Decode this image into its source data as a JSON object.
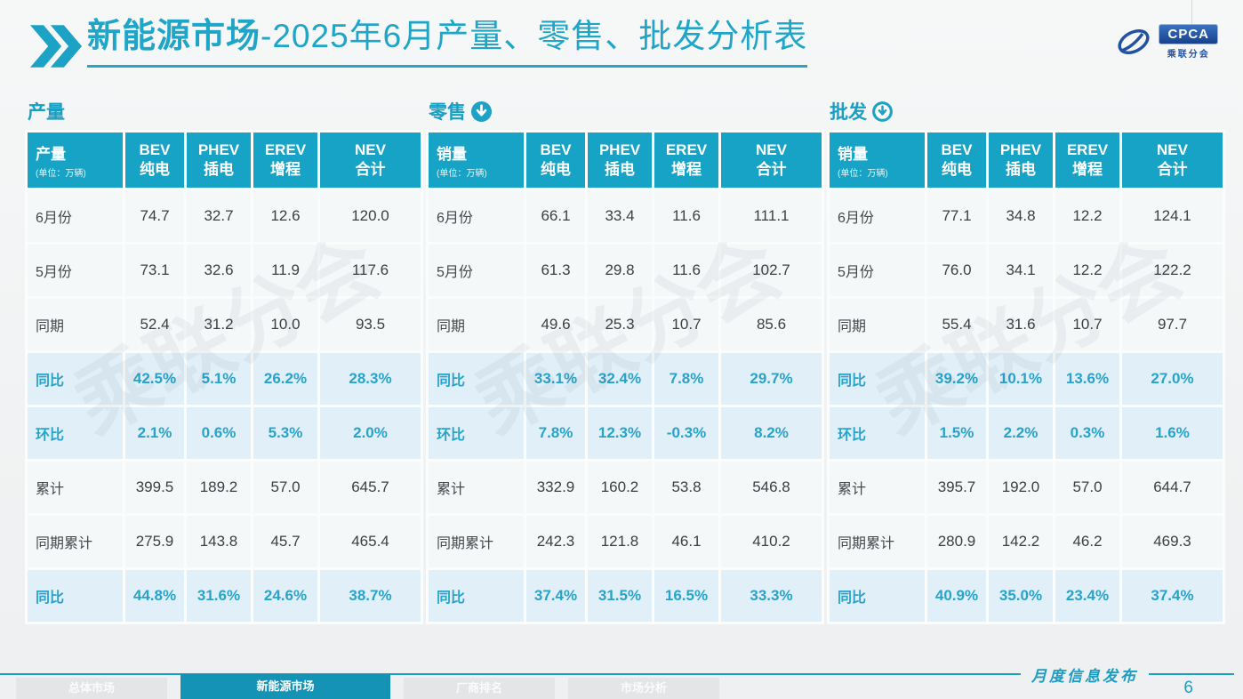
{
  "title": {
    "bold": "新能源市场",
    "rest": "-2025年6月产量、零售、批发分析表"
  },
  "logo": {
    "text": "CPCA",
    "subtext": "乘联分会"
  },
  "watermark": "乘联分会",
  "columns": [
    {
      "l1": "BEV",
      "l2": "纯电"
    },
    {
      "l1": "PHEV",
      "l2": "插电"
    },
    {
      "l1": "EREV",
      "l2": "增程"
    },
    {
      "l1": "NEV",
      "l2": "合计"
    }
  ],
  "tables": [
    {
      "section": "产量",
      "icon": "none",
      "label": "产量",
      "unit": "(单位：万辆)",
      "rows": [
        {
          "label": "6月份",
          "highlight": false,
          "values": [
            "74.7",
            "32.7",
            "12.6",
            "120.0"
          ]
        },
        {
          "label": "5月份",
          "highlight": false,
          "values": [
            "73.1",
            "32.6",
            "11.9",
            "117.6"
          ]
        },
        {
          "label": "同期",
          "highlight": false,
          "values": [
            "52.4",
            "31.2",
            "10.0",
            "93.5"
          ]
        },
        {
          "label": "同比",
          "highlight": true,
          "values": [
            "42.5%",
            "5.1%",
            "26.2%",
            "28.3%"
          ]
        },
        {
          "label": "环比",
          "highlight": true,
          "values": [
            "2.1%",
            "0.6%",
            "5.3%",
            "2.0%"
          ]
        },
        {
          "label": "累计",
          "highlight": false,
          "values": [
            "399.5",
            "189.2",
            "57.0",
            "645.7"
          ]
        },
        {
          "label": "同期累计",
          "highlight": false,
          "values": [
            "275.9",
            "143.8",
            "45.7",
            "465.4"
          ]
        },
        {
          "label": "同比",
          "highlight": true,
          "values": [
            "44.8%",
            "31.6%",
            "24.6%",
            "38.7%"
          ]
        }
      ]
    },
    {
      "section": "零售",
      "icon": "arrow-down-filled",
      "label": "销量",
      "unit": "(单位：万辆)",
      "rows": [
        {
          "label": "6月份",
          "highlight": false,
          "values": [
            "66.1",
            "33.4",
            "11.6",
            "111.1"
          ]
        },
        {
          "label": "5月份",
          "highlight": false,
          "values": [
            "61.3",
            "29.8",
            "11.6",
            "102.7"
          ]
        },
        {
          "label": "同期",
          "highlight": false,
          "values": [
            "49.6",
            "25.3",
            "10.7",
            "85.6"
          ]
        },
        {
          "label": "同比",
          "highlight": true,
          "values": [
            "33.1%",
            "32.4%",
            "7.8%",
            "29.7%"
          ]
        },
        {
          "label": "环比",
          "highlight": true,
          "values": [
            "7.8%",
            "12.3%",
            "-0.3%",
            "8.2%"
          ]
        },
        {
          "label": "累计",
          "highlight": false,
          "values": [
            "332.9",
            "160.2",
            "53.8",
            "546.8"
          ]
        },
        {
          "label": "同期累计",
          "highlight": false,
          "values": [
            "242.3",
            "121.8",
            "46.1",
            "410.2"
          ]
        },
        {
          "label": "同比",
          "highlight": true,
          "values": [
            "37.4%",
            "31.5%",
            "16.5%",
            "33.3%"
          ]
        }
      ]
    },
    {
      "section": "批发",
      "icon": "arrow-down-outline",
      "label": "销量",
      "unit": "(单位：万辆)",
      "rows": [
        {
          "label": "6月份",
          "highlight": false,
          "values": [
            "77.1",
            "34.8",
            "12.2",
            "124.1"
          ]
        },
        {
          "label": "5月份",
          "highlight": false,
          "values": [
            "76.0",
            "34.1",
            "12.2",
            "122.2"
          ]
        },
        {
          "label": "同期",
          "highlight": false,
          "values": [
            "55.4",
            "31.6",
            "10.7",
            "97.7"
          ]
        },
        {
          "label": "同比",
          "highlight": true,
          "values": [
            "39.2%",
            "10.1%",
            "13.6%",
            "27.0%"
          ]
        },
        {
          "label": "环比",
          "highlight": true,
          "values": [
            "1.5%",
            "2.2%",
            "0.3%",
            "1.6%"
          ]
        },
        {
          "label": "累计",
          "highlight": false,
          "values": [
            "395.7",
            "192.0",
            "57.0",
            "644.7"
          ]
        },
        {
          "label": "同期累计",
          "highlight": false,
          "values": [
            "280.9",
            "142.2",
            "46.2",
            "469.3"
          ]
        },
        {
          "label": "同比",
          "highlight": true,
          "values": [
            "40.9%",
            "35.0%",
            "23.4%",
            "37.4%"
          ]
        }
      ]
    }
  ],
  "footer": {
    "caption": "月度信息发布",
    "page": "6",
    "tabs": [
      {
        "label": "总体市场",
        "active": false
      },
      {
        "label": "新能源市场",
        "active": true
      },
      {
        "label": "厂商排名",
        "active": false
      },
      {
        "label": "市场分析",
        "active": false
      }
    ]
  },
  "colors": {
    "teal": "#17a3c5",
    "teal_dark": "#1593b5",
    "highlight_row": "#e1eff8",
    "logo_blue": "#2253a3"
  }
}
